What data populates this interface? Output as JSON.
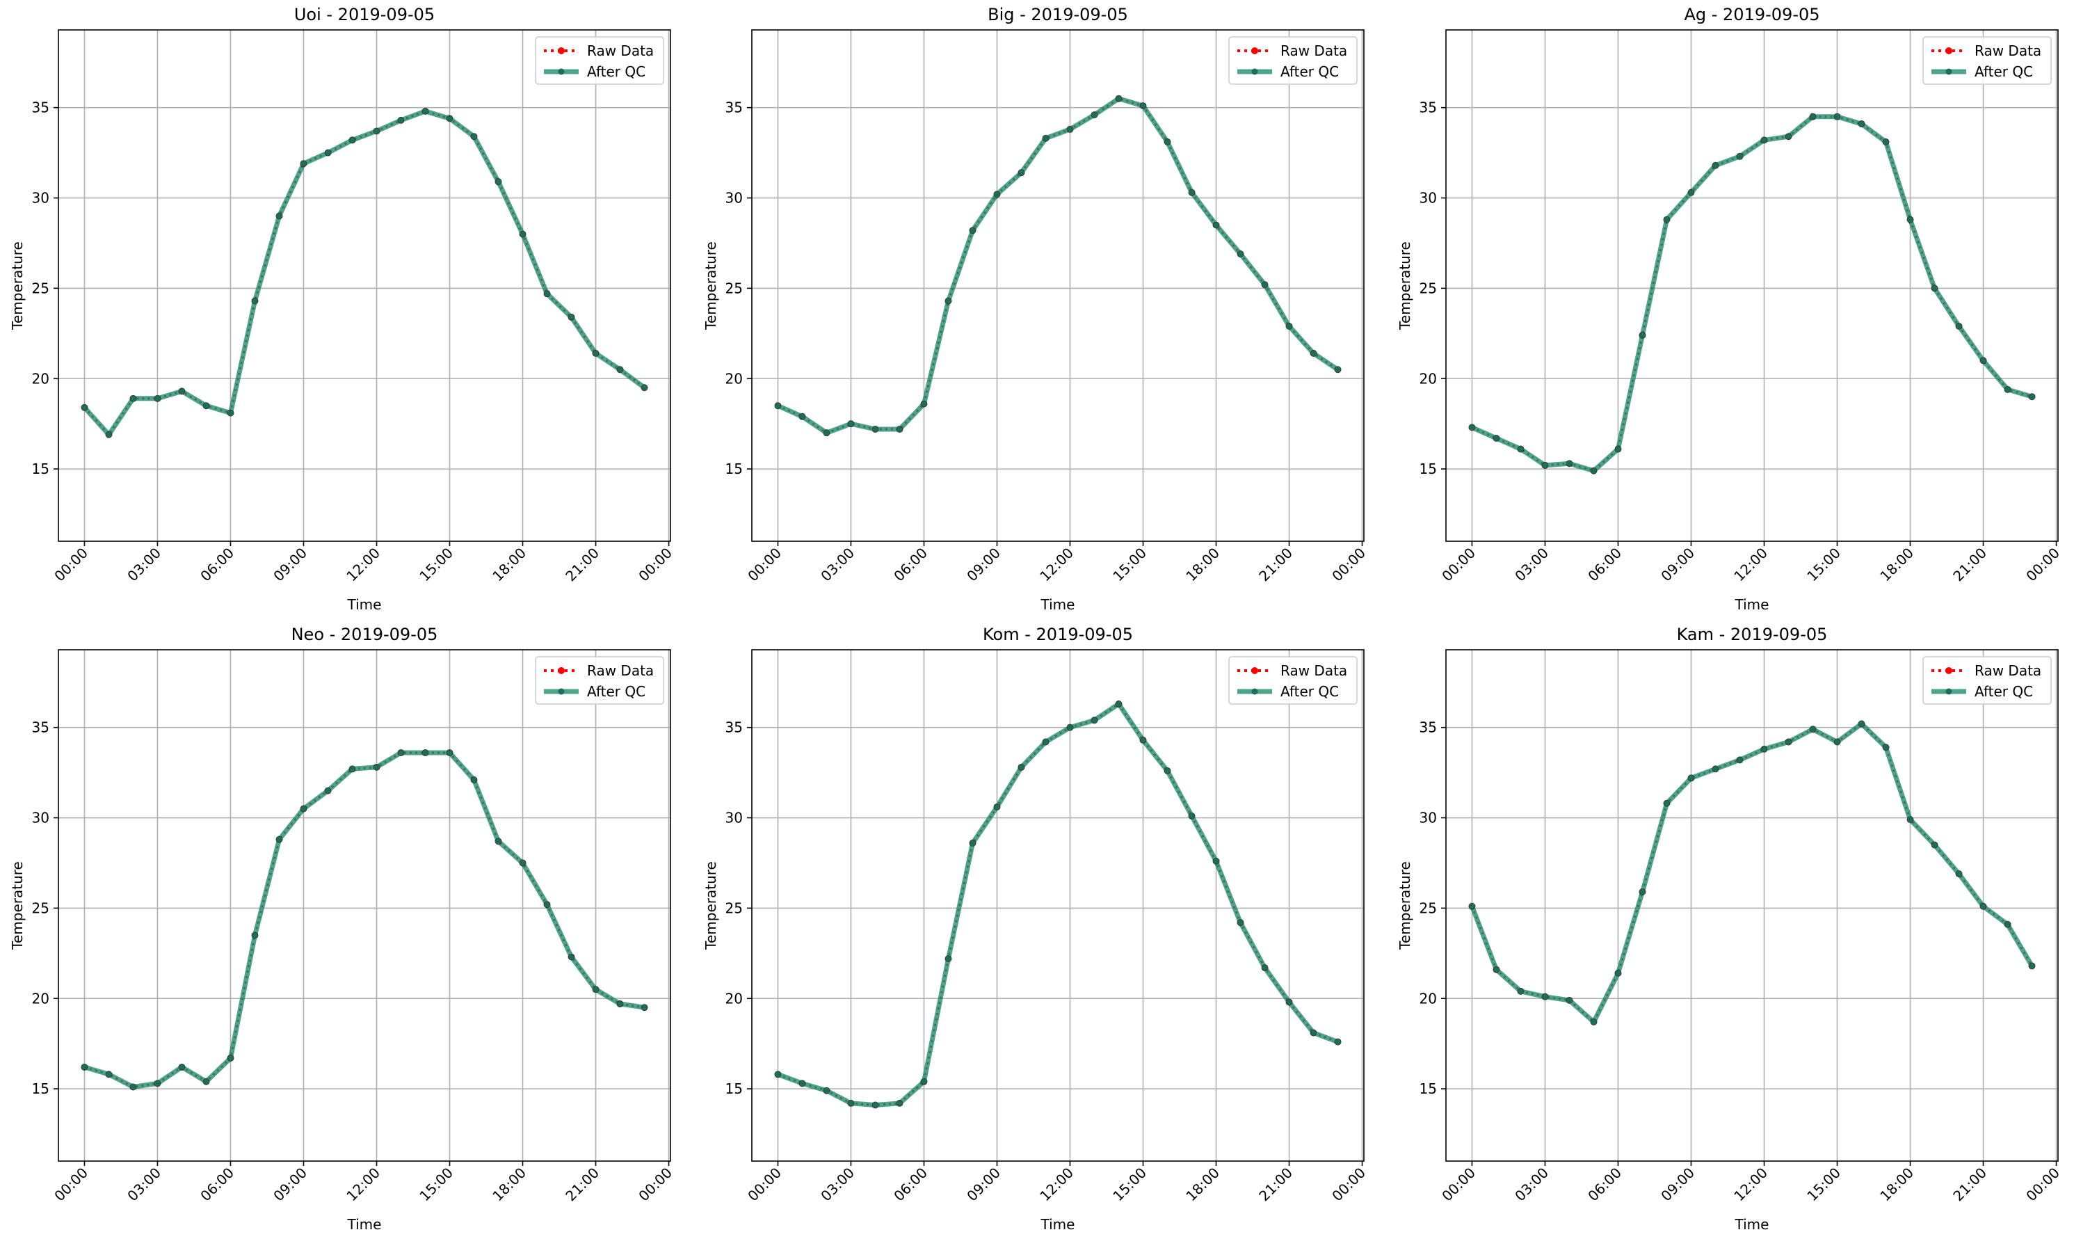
{
  "legend": {
    "raw_label": "Raw Data",
    "qc_label": "After QC",
    "placement": "upper right"
  },
  "colors": {
    "raw": "#ff0000",
    "qc": "#1a8a6a",
    "grid": "#b0b0b0",
    "axes": "#000000"
  },
  "chart_data": [
    {
      "type": "line",
      "title": "Uoi - 2019-09-05",
      "xlabel": "Time",
      "ylabel": "Temperature",
      "xticks": [
        "00:00",
        "03:00",
        "06:00",
        "09:00",
        "12:00",
        "15:00",
        "18:00",
        "21:00",
        "00:00"
      ],
      "yticks": [
        15,
        20,
        25,
        30,
        35
      ],
      "ylim": [
        11,
        39.3
      ],
      "grid": true,
      "x_hours": [
        0,
        1,
        2,
        3,
        4,
        5,
        6,
        7,
        8,
        9,
        10,
        11,
        12,
        13,
        14,
        15,
        16,
        17,
        18,
        19,
        20,
        21,
        22,
        23
      ],
      "series": [
        {
          "name": "Raw Data",
          "values": [
            18.4,
            16.9,
            18.9,
            18.9,
            19.3,
            18.5,
            18.1,
            24.3,
            29.0,
            31.9,
            32.5,
            33.2,
            33.7,
            34.3,
            34.8,
            34.4,
            33.4,
            30.9,
            28.0,
            24.7,
            23.4,
            21.4,
            20.5,
            19.5
          ]
        },
        {
          "name": "After QC",
          "values": [
            18.4,
            16.9,
            18.9,
            18.9,
            19.3,
            18.5,
            18.1,
            24.3,
            29.0,
            31.9,
            32.5,
            33.2,
            33.7,
            34.3,
            34.8,
            34.4,
            33.4,
            30.9,
            28.0,
            24.7,
            23.4,
            21.4,
            20.5,
            19.5
          ]
        }
      ]
    },
    {
      "type": "line",
      "title": "Big - 2019-09-05",
      "xlabel": "Time",
      "ylabel": "Temperature",
      "xticks": [
        "00:00",
        "03:00",
        "06:00",
        "09:00",
        "12:00",
        "15:00",
        "18:00",
        "21:00",
        "00:00"
      ],
      "yticks": [
        15,
        20,
        25,
        30,
        35
      ],
      "ylim": [
        11,
        39.3
      ],
      "grid": true,
      "x_hours": [
        0,
        1,
        2,
        3,
        4,
        5,
        6,
        7,
        8,
        9,
        10,
        11,
        12,
        13,
        14,
        15,
        16,
        17,
        18,
        19,
        20,
        21,
        22,
        23
      ],
      "series": [
        {
          "name": "Raw Data",
          "values": [
            18.5,
            17.9,
            17.0,
            17.5,
            17.2,
            17.2,
            18.6,
            24.3,
            28.2,
            30.2,
            31.4,
            33.3,
            33.8,
            34.6,
            35.5,
            35.1,
            33.1,
            30.3,
            28.5,
            26.9,
            25.2,
            22.9,
            21.4,
            20.5
          ]
        },
        {
          "name": "After QC",
          "values": [
            18.5,
            17.9,
            17.0,
            17.5,
            17.2,
            17.2,
            18.6,
            24.3,
            28.2,
            30.2,
            31.4,
            33.3,
            33.8,
            34.6,
            35.5,
            35.1,
            33.1,
            30.3,
            28.5,
            26.9,
            25.2,
            22.9,
            21.4,
            20.5
          ]
        }
      ]
    },
    {
      "type": "line",
      "title": "Ag - 2019-09-05",
      "xlabel": "Time",
      "ylabel": "Temperature",
      "xticks": [
        "00:00",
        "03:00",
        "06:00",
        "09:00",
        "12:00",
        "15:00",
        "18:00",
        "21:00",
        "00:00"
      ],
      "yticks": [
        15,
        20,
        25,
        30,
        35
      ],
      "ylim": [
        11,
        39.3
      ],
      "grid": true,
      "x_hours": [
        0,
        1,
        2,
        3,
        4,
        5,
        6,
        7,
        8,
        9,
        10,
        11,
        12,
        13,
        14,
        15,
        16,
        17,
        18,
        19,
        20,
        21,
        22,
        23
      ],
      "series": [
        {
          "name": "Raw Data",
          "values": [
            17.3,
            16.7,
            16.1,
            15.2,
            15.3,
            14.9,
            16.1,
            22.4,
            28.8,
            30.3,
            31.8,
            32.3,
            33.2,
            33.4,
            34.5,
            34.5,
            34.1,
            33.1,
            28.8,
            25.0,
            22.9,
            21.0,
            19.4,
            19.0
          ]
        },
        {
          "name": "After QC",
          "values": [
            17.3,
            16.7,
            16.1,
            15.2,
            15.3,
            14.9,
            16.1,
            22.4,
            28.8,
            30.3,
            31.8,
            32.3,
            33.2,
            33.4,
            34.5,
            34.5,
            34.1,
            33.1,
            28.8,
            25.0,
            22.9,
            21.0,
            19.4,
            19.0
          ]
        }
      ]
    },
    {
      "type": "line",
      "title": "Neo - 2019-09-05",
      "xlabel": "Time",
      "ylabel": "Temperature",
      "xticks": [
        "00:00",
        "03:00",
        "06:00",
        "09:00",
        "12:00",
        "15:00",
        "18:00",
        "21:00",
        "00:00"
      ],
      "yticks": [
        15,
        20,
        25,
        30,
        35
      ],
      "ylim": [
        11,
        39.3
      ],
      "grid": true,
      "x_hours": [
        0,
        1,
        2,
        3,
        4,
        5,
        6,
        7,
        8,
        9,
        10,
        11,
        12,
        13,
        14,
        15,
        16,
        17,
        18,
        19,
        20,
        21,
        22,
        23
      ],
      "series": [
        {
          "name": "Raw Data",
          "values": [
            16.2,
            15.8,
            15.1,
            15.3,
            16.2,
            15.4,
            16.7,
            23.5,
            28.8,
            30.5,
            31.5,
            32.7,
            32.8,
            33.6,
            33.6,
            33.6,
            32.1,
            28.7,
            27.5,
            25.2,
            22.3,
            20.5,
            19.7,
            19.5
          ]
        },
        {
          "name": "After QC",
          "values": [
            16.2,
            15.8,
            15.1,
            15.3,
            16.2,
            15.4,
            16.7,
            23.5,
            28.8,
            30.5,
            31.5,
            32.7,
            32.8,
            33.6,
            33.6,
            33.6,
            32.1,
            28.7,
            27.5,
            25.2,
            22.3,
            20.5,
            19.7,
            19.5
          ]
        }
      ]
    },
    {
      "type": "line",
      "title": "Kom - 2019-09-05",
      "xlabel": "Time",
      "ylabel": "Temperature",
      "xticks": [
        "00:00",
        "03:00",
        "06:00",
        "09:00",
        "12:00",
        "15:00",
        "18:00",
        "21:00",
        "00:00"
      ],
      "yticks": [
        15,
        20,
        25,
        30,
        35
      ],
      "ylim": [
        11,
        39.3
      ],
      "grid": true,
      "x_hours": [
        0,
        1,
        2,
        3,
        4,
        5,
        6,
        7,
        8,
        9,
        10,
        11,
        12,
        13,
        14,
        15,
        16,
        17,
        18,
        19,
        20,
        21,
        22,
        23
      ],
      "series": [
        {
          "name": "Raw Data",
          "values": [
            15.8,
            15.3,
            14.9,
            14.2,
            14.1,
            14.2,
            15.4,
            22.2,
            28.6,
            30.6,
            32.8,
            34.2,
            35.0,
            35.4,
            36.3,
            34.3,
            32.6,
            30.1,
            27.6,
            24.2,
            21.7,
            19.8,
            18.1,
            17.6
          ]
        },
        {
          "name": "After QC",
          "values": [
            15.8,
            15.3,
            14.9,
            14.2,
            14.1,
            14.2,
            15.4,
            22.2,
            28.6,
            30.6,
            32.8,
            34.2,
            35.0,
            35.4,
            36.3,
            34.3,
            32.6,
            30.1,
            27.6,
            24.2,
            21.7,
            19.8,
            18.1,
            17.6
          ]
        }
      ]
    },
    {
      "type": "line",
      "title": "Kam - 2019-09-05",
      "xlabel": "Time",
      "ylabel": "Temperature",
      "xticks": [
        "00:00",
        "03:00",
        "06:00",
        "09:00",
        "12:00",
        "15:00",
        "18:00",
        "21:00",
        "00:00"
      ],
      "yticks": [
        15,
        20,
        25,
        30,
        35
      ],
      "ylim": [
        11,
        39.3
      ],
      "grid": true,
      "x_hours": [
        0,
        1,
        2,
        3,
        4,
        5,
        6,
        7,
        8,
        9,
        10,
        11,
        12,
        13,
        14,
        15,
        16,
        17,
        18,
        19,
        20,
        21,
        22,
        23
      ],
      "series": [
        {
          "name": "Raw Data",
          "values": [
            25.1,
            21.6,
            20.4,
            20.1,
            19.9,
            18.7,
            21.4,
            25.9,
            30.8,
            32.2,
            32.7,
            33.2,
            33.8,
            34.2,
            34.9,
            34.2,
            35.2,
            33.9,
            29.9,
            28.5,
            26.9,
            25.1,
            24.1,
            21.8
          ]
        },
        {
          "name": "After QC",
          "values": [
            25.1,
            21.6,
            20.4,
            20.1,
            19.9,
            18.7,
            21.4,
            25.9,
            30.8,
            32.2,
            32.7,
            33.2,
            33.8,
            34.2,
            34.9,
            34.2,
            35.2,
            33.9,
            29.9,
            28.5,
            26.9,
            25.1,
            24.1,
            21.8
          ]
        }
      ]
    }
  ]
}
